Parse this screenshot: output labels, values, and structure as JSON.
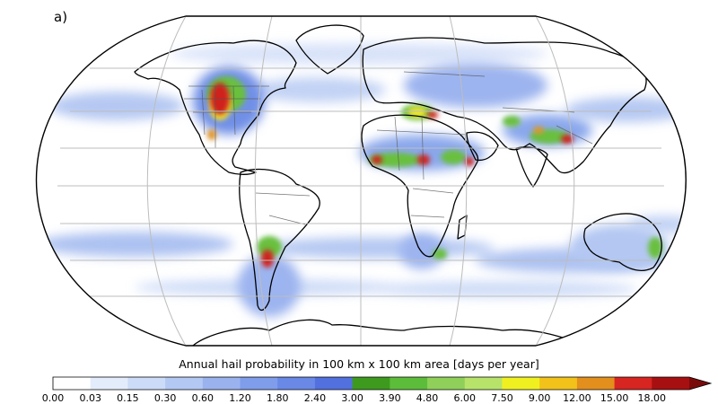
{
  "panel_label": "a)",
  "colorbar": {
    "title": "Annual hail probability in 100 km x 100 km area [days per year]",
    "ticks": [
      "0.00",
      "0.03",
      "0.15",
      "0.30",
      "0.60",
      "1.20",
      "1.80",
      "2.40",
      "3.00",
      "3.90",
      "4.80",
      "6.00",
      "7.50",
      "9.00",
      "12.00",
      "15.00",
      "18.00"
    ],
    "colors": [
      "#ffffff",
      "#e3ecfb",
      "#ccdbf7",
      "#b3c8f3",
      "#9ab3ef",
      "#809deb",
      "#6a88e6",
      "#5370df",
      "#3d9a1e",
      "#5cbd3a",
      "#8fd05b",
      "#b7e36b",
      "#f0f020",
      "#f2c21a",
      "#e38f1d",
      "#d72521",
      "#a71010"
    ],
    "extend_color": "#7a0b0b"
  },
  "map": {
    "projection": "Robinson",
    "ocean_color": "#ffffff",
    "land_outline_color": "#000000",
    "gridline_color": "#bdbdbd",
    "hotspot_colors": {
      "low": "#b8c9f2",
      "mid": "#6f8fe6",
      "green": "#69c03d",
      "yellow": "#f2e82a",
      "orange": "#e39420",
      "red": "#cf231d"
    }
  }
}
